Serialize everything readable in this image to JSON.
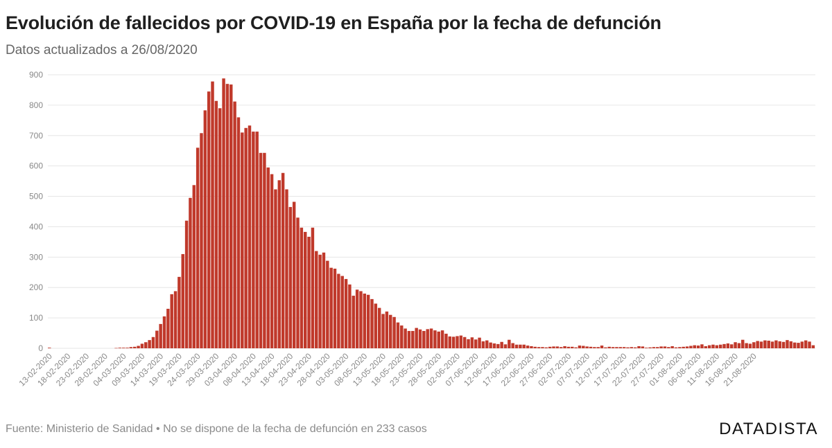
{
  "header": {
    "title": "Evolución de fallecidos por COVID-19 en España por la fecha de defunción",
    "subtitle": "Datos actualizados a 26/08/2020"
  },
  "footer": {
    "source": "Fuente: Ministerio de Sanidad • No se dispone de la fecha de defunción en 233 casos",
    "brand": "DATADISTA"
  },
  "colors": {
    "bar": "#c0392b",
    "grid": "#e6e6e6",
    "axis_text": "#888888"
  },
  "chart_data": {
    "type": "bar",
    "title": "Evolución de fallecidos por COVID-19 en España por la fecha de defunción",
    "subtitle": "Datos actualizados a 26/08/2020",
    "xlabel": "",
    "ylabel": "",
    "ylim": [
      0,
      900
    ],
    "yticks": [
      0,
      100,
      200,
      300,
      400,
      500,
      600,
      700,
      800,
      900
    ],
    "grid": true,
    "x_start": "13-02-2020",
    "x_tick_step_days": 5,
    "x_ticks": [
      "13-02-2020",
      "18-02-2020",
      "23-02-2020",
      "28-02-2020",
      "04-03-2020",
      "09-03-2020",
      "14-03-2020",
      "19-03-2020",
      "24-03-2020",
      "29-03-2020",
      "03-04-2020",
      "08-04-2020",
      "13-04-2020",
      "18-04-2020",
      "23-04-2020",
      "28-04-2020",
      "03-05-2020",
      "08-05-2020",
      "13-05-2020",
      "18-05-2020",
      "23-05-2020",
      "28-05-2020",
      "02-06-2020",
      "07-06-2020",
      "12-06-2020",
      "17-06-2020",
      "22-06-2020",
      "27-06-2020",
      "02-07-2020",
      "07-07-2020",
      "12-07-2020",
      "17-07-2020",
      "22-07-2020",
      "27-07-2020",
      "01-08-2020",
      "06-08-2020",
      "11-08-2020",
      "16-08-2020",
      "21-08-2020"
    ],
    "values": [
      2,
      0,
      0,
      0,
      0,
      0,
      0,
      0,
      0,
      0,
      0,
      0,
      0,
      0,
      0,
      0,
      0,
      0,
      1,
      2,
      2,
      2,
      4,
      5,
      8,
      15,
      20,
      27,
      37,
      58,
      80,
      105,
      130,
      178,
      188,
      235,
      310,
      420,
      495,
      537,
      660,
      708,
      783,
      845,
      878,
      814,
      790,
      888,
      870,
      868,
      812,
      760,
      710,
      725,
      733,
      713,
      713,
      643,
      643,
      595,
      573,
      523,
      553,
      577,
      523,
      465,
      482,
      430,
      397,
      383,
      367,
      397,
      320,
      308,
      315,
      288,
      265,
      262,
      245,
      238,
      228,
      210,
      173,
      193,
      188,
      180,
      176,
      162,
      147,
      133,
      113,
      121,
      110,
      103,
      85,
      75,
      65,
      57,
      57,
      67,
      62,
      57,
      63,
      65,
      59,
      55,
      59,
      48,
      39,
      38,
      40,
      42,
      37,
      30,
      36,
      29,
      35,
      23,
      26,
      19,
      16,
      14,
      21,
      13,
      28,
      17,
      12,
      12,
      12,
      9,
      7,
      5,
      4,
      4,
      3,
      5,
      6,
      6,
      4,
      7,
      5,
      5,
      3,
      9,
      8,
      6,
      5,
      4,
      4,
      9,
      3,
      5,
      4,
      4,
      4,
      4,
      3,
      4,
      3,
      7,
      6,
      2,
      3,
      4,
      4,
      6,
      6,
      4,
      7,
      3,
      4,
      5,
      6,
      8,
      10,
      9,
      13,
      7,
      10,
      12,
      10,
      12,
      14,
      16,
      13,
      20,
      17,
      28,
      17,
      15,
      20,
      24,
      22,
      26,
      25,
      22,
      26,
      23,
      21,
      27,
      23,
      19,
      18,
      22,
      26,
      22,
      10
    ]
  }
}
